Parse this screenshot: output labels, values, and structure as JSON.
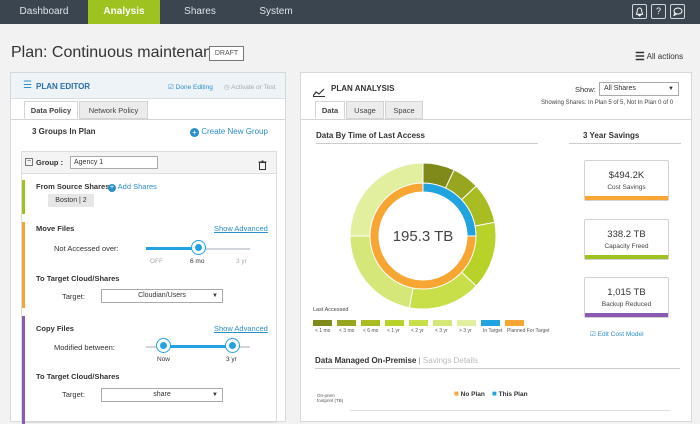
{
  "nav": {
    "items": [
      "Dashboard",
      "Analysis",
      "Shares",
      "System"
    ],
    "active": "Analysis",
    "icons": [
      "bell-icon",
      "help-icon",
      "chat-icon"
    ]
  },
  "page": {
    "title": "Plan: Continuous maintenance",
    "status": "DRAFT",
    "all_actions": "All actions"
  },
  "editor": {
    "title": "PLAN EDITOR",
    "done_editing": "Done Editing",
    "activate": "Activate or Test",
    "tabs": [
      "Data Policy",
      "Network Policy"
    ],
    "groups_count": "3 Groups In Plan",
    "create_group": "Create New Group",
    "group_label": "Group :",
    "group_name": "Agency 1",
    "from_source": "From Source Shares",
    "add_shares": "Add Shares",
    "source_share": "Boston | 2",
    "move_files": "Move Files",
    "show_advanced": "Show Advanced",
    "not_accessed": "Not Accessed over:",
    "move_slider": {
      "labels": [
        "OFF",
        "6 mo",
        "3 yr"
      ],
      "value_label": "6 mo"
    },
    "to_target": "To Target Cloud/Shares",
    "target_label": "Target:",
    "target_value_1": "Cloudian/Users",
    "copy_files": "Copy Files",
    "modified_between": "Modified between:",
    "copy_slider": {
      "labels": [
        "Now",
        "3 yr"
      ]
    },
    "target_value_2": "share"
  },
  "analysis": {
    "title": "PLAN ANALYSIS",
    "show_label": "Show:",
    "show_value": "All Shares",
    "showing_note": "Showing Shares: In Plan 5 of 5, Not In Plan 0 of 0",
    "tabs": [
      "Data",
      "Usage",
      "Space"
    ],
    "chart_title": "Data By Time of Last Access",
    "center_value": "195.3 TB",
    "last_accessed": "Last Accessed",
    "savings_title": "3 Year Savings",
    "cards": [
      {
        "value": "$494.2K",
        "label": "Cost Savings",
        "color": "#f7a533"
      },
      {
        "value": "338.2 TB",
        "label": "Capacity Freed",
        "color": "#9ec21f"
      },
      {
        "value": "1,015 TB",
        "label": "Backup Reduced",
        "color": "#8a5bb0"
      }
    ],
    "edit_cost_model": "Edit Cost Model",
    "managed_title": "Data Managed On-Premise",
    "savings_details": "Savings Details",
    "no_plan": "No Plan",
    "this_plan": "This Plan",
    "axis_note": "On-prem footprint (TB)"
  },
  "chart_data": {
    "type": "pie",
    "title": "Data By Time of Last Access",
    "center_label": "195.3 TB",
    "legend_title": "Last Accessed",
    "categories": [
      "< 1 mo",
      "< 3 mo",
      "< 6 mo",
      "< 1 yr",
      "< 2 yr",
      "< 3 yr",
      "> 3 yr",
      "In Target",
      "Planned For Target"
    ],
    "colors": [
      "#7f8a1a",
      "#97a51f",
      "#a9bd22",
      "#b8d22a",
      "#c8df4a",
      "#d6e77a",
      "#e2ef9e",
      "#21a3e0",
      "#f7a533"
    ],
    "outer_ring": [
      7,
      6,
      9,
      15,
      16,
      22,
      25
    ],
    "inner_ring": [
      25,
      75
    ]
  }
}
